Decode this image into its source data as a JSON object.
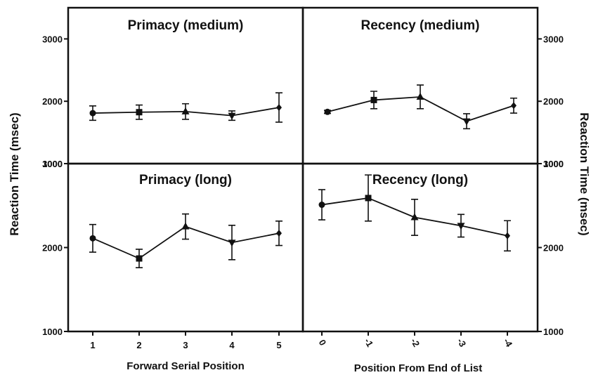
{
  "chart_data": [
    {
      "type": "line",
      "title": "Primacy (medium)",
      "x": [
        "1",
        "2",
        "3",
        "4",
        "5"
      ],
      "values": [
        1810,
        1825,
        1835,
        1770,
        1900
      ],
      "errors": [
        115,
        115,
        125,
        75,
        235
      ],
      "markers": [
        "circle",
        "square",
        "triangle-up",
        "triangle-down",
        "diamond"
      ],
      "ylim": [
        1000,
        3500
      ],
      "yticks": [
        "1000",
        "2000",
        "3000"
      ]
    },
    {
      "type": "line",
      "title": "Recency (medium)",
      "x": [
        "0",
        "-1",
        "-2",
        "-3",
        "-4"
      ],
      "values": [
        1830,
        2020,
        2070,
        1680,
        1930
      ],
      "errors": [
        25,
        140,
        190,
        120,
        120
      ],
      "markers": [
        "circle",
        "square",
        "triangle-up",
        "triangle-down",
        "diamond"
      ],
      "ylim": [
        1000,
        3500
      ],
      "yticks": [
        "1000",
        "2000",
        "3000"
      ]
    },
    {
      "type": "line",
      "title": "Primacy (long)",
      "x": [
        "1",
        "2",
        "3",
        "4",
        "5"
      ],
      "values": [
        2110,
        1870,
        2250,
        2060,
        2170
      ],
      "errors": [
        165,
        110,
        150,
        205,
        145
      ],
      "markers": [
        "circle",
        "square",
        "triangle-up",
        "triangle-down",
        "diamond"
      ],
      "ylim": [
        1000,
        3000
      ],
      "yticks": [
        "1000",
        "2000",
        "3000"
      ]
    },
    {
      "type": "line",
      "title": "Recency (long)",
      "x": [
        "0",
        "-1",
        "-2",
        "-3",
        "-4"
      ],
      "values": [
        2510,
        2590,
        2360,
        2260,
        2140
      ],
      "errors": [
        180,
        275,
        215,
        135,
        180
      ],
      "markers": [
        "circle",
        "square",
        "triangle-up",
        "triangle-down",
        "diamond"
      ],
      "ylim": [
        1000,
        3000
      ],
      "yticks": [
        "1000",
        "2000",
        "3000"
      ]
    }
  ],
  "labels": {
    "ylabel_left": "Reaction Time (msec)",
    "ylabel_right": "Reaction Time (msec)",
    "xlabel_left": "Forward Serial Position",
    "xlabel_right": "Position From End of List"
  }
}
